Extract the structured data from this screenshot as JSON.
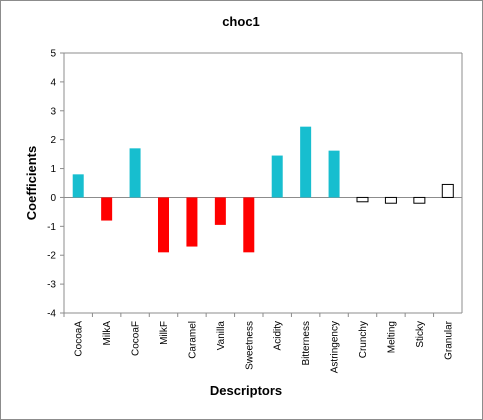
{
  "chart_data": {
    "type": "bar",
    "title": "choc1",
    "xlabel": "Descriptors",
    "ylabel": "Coefficients",
    "ylim": [
      -4,
      5
    ],
    "yticks": [
      5,
      4,
      3,
      2,
      1,
      0,
      -1,
      -2,
      -3,
      -4
    ],
    "grid": false,
    "legend": "none",
    "categories": [
      "CocoaA",
      "MilkA",
      "CocoaF",
      "MilkF",
      "Caramel",
      "Vanilla",
      "Sweetness",
      "Acidity",
      "Bitterness",
      "Astringency",
      "Crunchy",
      "Melting",
      "Sticky",
      "Granular"
    ],
    "values": [
      0.8,
      -0.8,
      1.7,
      -1.9,
      -1.7,
      -0.95,
      -1.9,
      1.45,
      2.45,
      1.62,
      -0.15,
      -0.2,
      -0.2,
      0.45
    ],
    "bar_styles": [
      "cyan",
      "red",
      "cyan",
      "red",
      "red",
      "red",
      "red",
      "cyan",
      "cyan",
      "cyan",
      "outline",
      "outline",
      "outline",
      "outline"
    ],
    "colors": {
      "cyan": "#17becf",
      "red": "#ff0000",
      "outline": "#ffffff",
      "outline_stroke": "#000000",
      "axis": "#8c8c8c"
    }
  }
}
